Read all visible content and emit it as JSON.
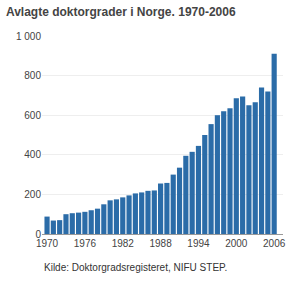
{
  "chart_data": {
    "type": "bar",
    "title": "Avlagte doktorgrader i Norge. 1970-2006",
    "annotations": [
      "Kilde: Doktorgradsregisteret, NIFU STEP."
    ],
    "x": [
      1970,
      1971,
      1972,
      1973,
      1974,
      1975,
      1976,
      1977,
      1978,
      1979,
      1980,
      1981,
      1982,
      1983,
      1984,
      1985,
      1986,
      1987,
      1988,
      1989,
      1990,
      1991,
      1992,
      1993,
      1994,
      1995,
      1996,
      1997,
      1998,
      1999,
      2000,
      2001,
      2002,
      2003,
      2004,
      2005,
      2006
    ],
    "values": [
      88,
      68,
      70,
      100,
      105,
      108,
      112,
      120,
      128,
      150,
      170,
      175,
      185,
      195,
      205,
      210,
      218,
      220,
      255,
      258,
      300,
      335,
      395,
      415,
      445,
      500,
      555,
      600,
      620,
      635,
      685,
      695,
      650,
      665,
      740,
      720,
      910
    ],
    "color": "#2b6ca8",
    "xlim": [
      1969.2,
      2007.4
    ],
    "xticks": [
      1970,
      1976,
      1982,
      1988,
      1994,
      2000,
      2006
    ],
    "ylim": [
      0,
      1000
    ],
    "yticks": [
      0,
      200,
      400,
      600,
      800,
      {
        "value": 1000,
        "label": "1 000"
      }
    ],
    "grid": true
  }
}
